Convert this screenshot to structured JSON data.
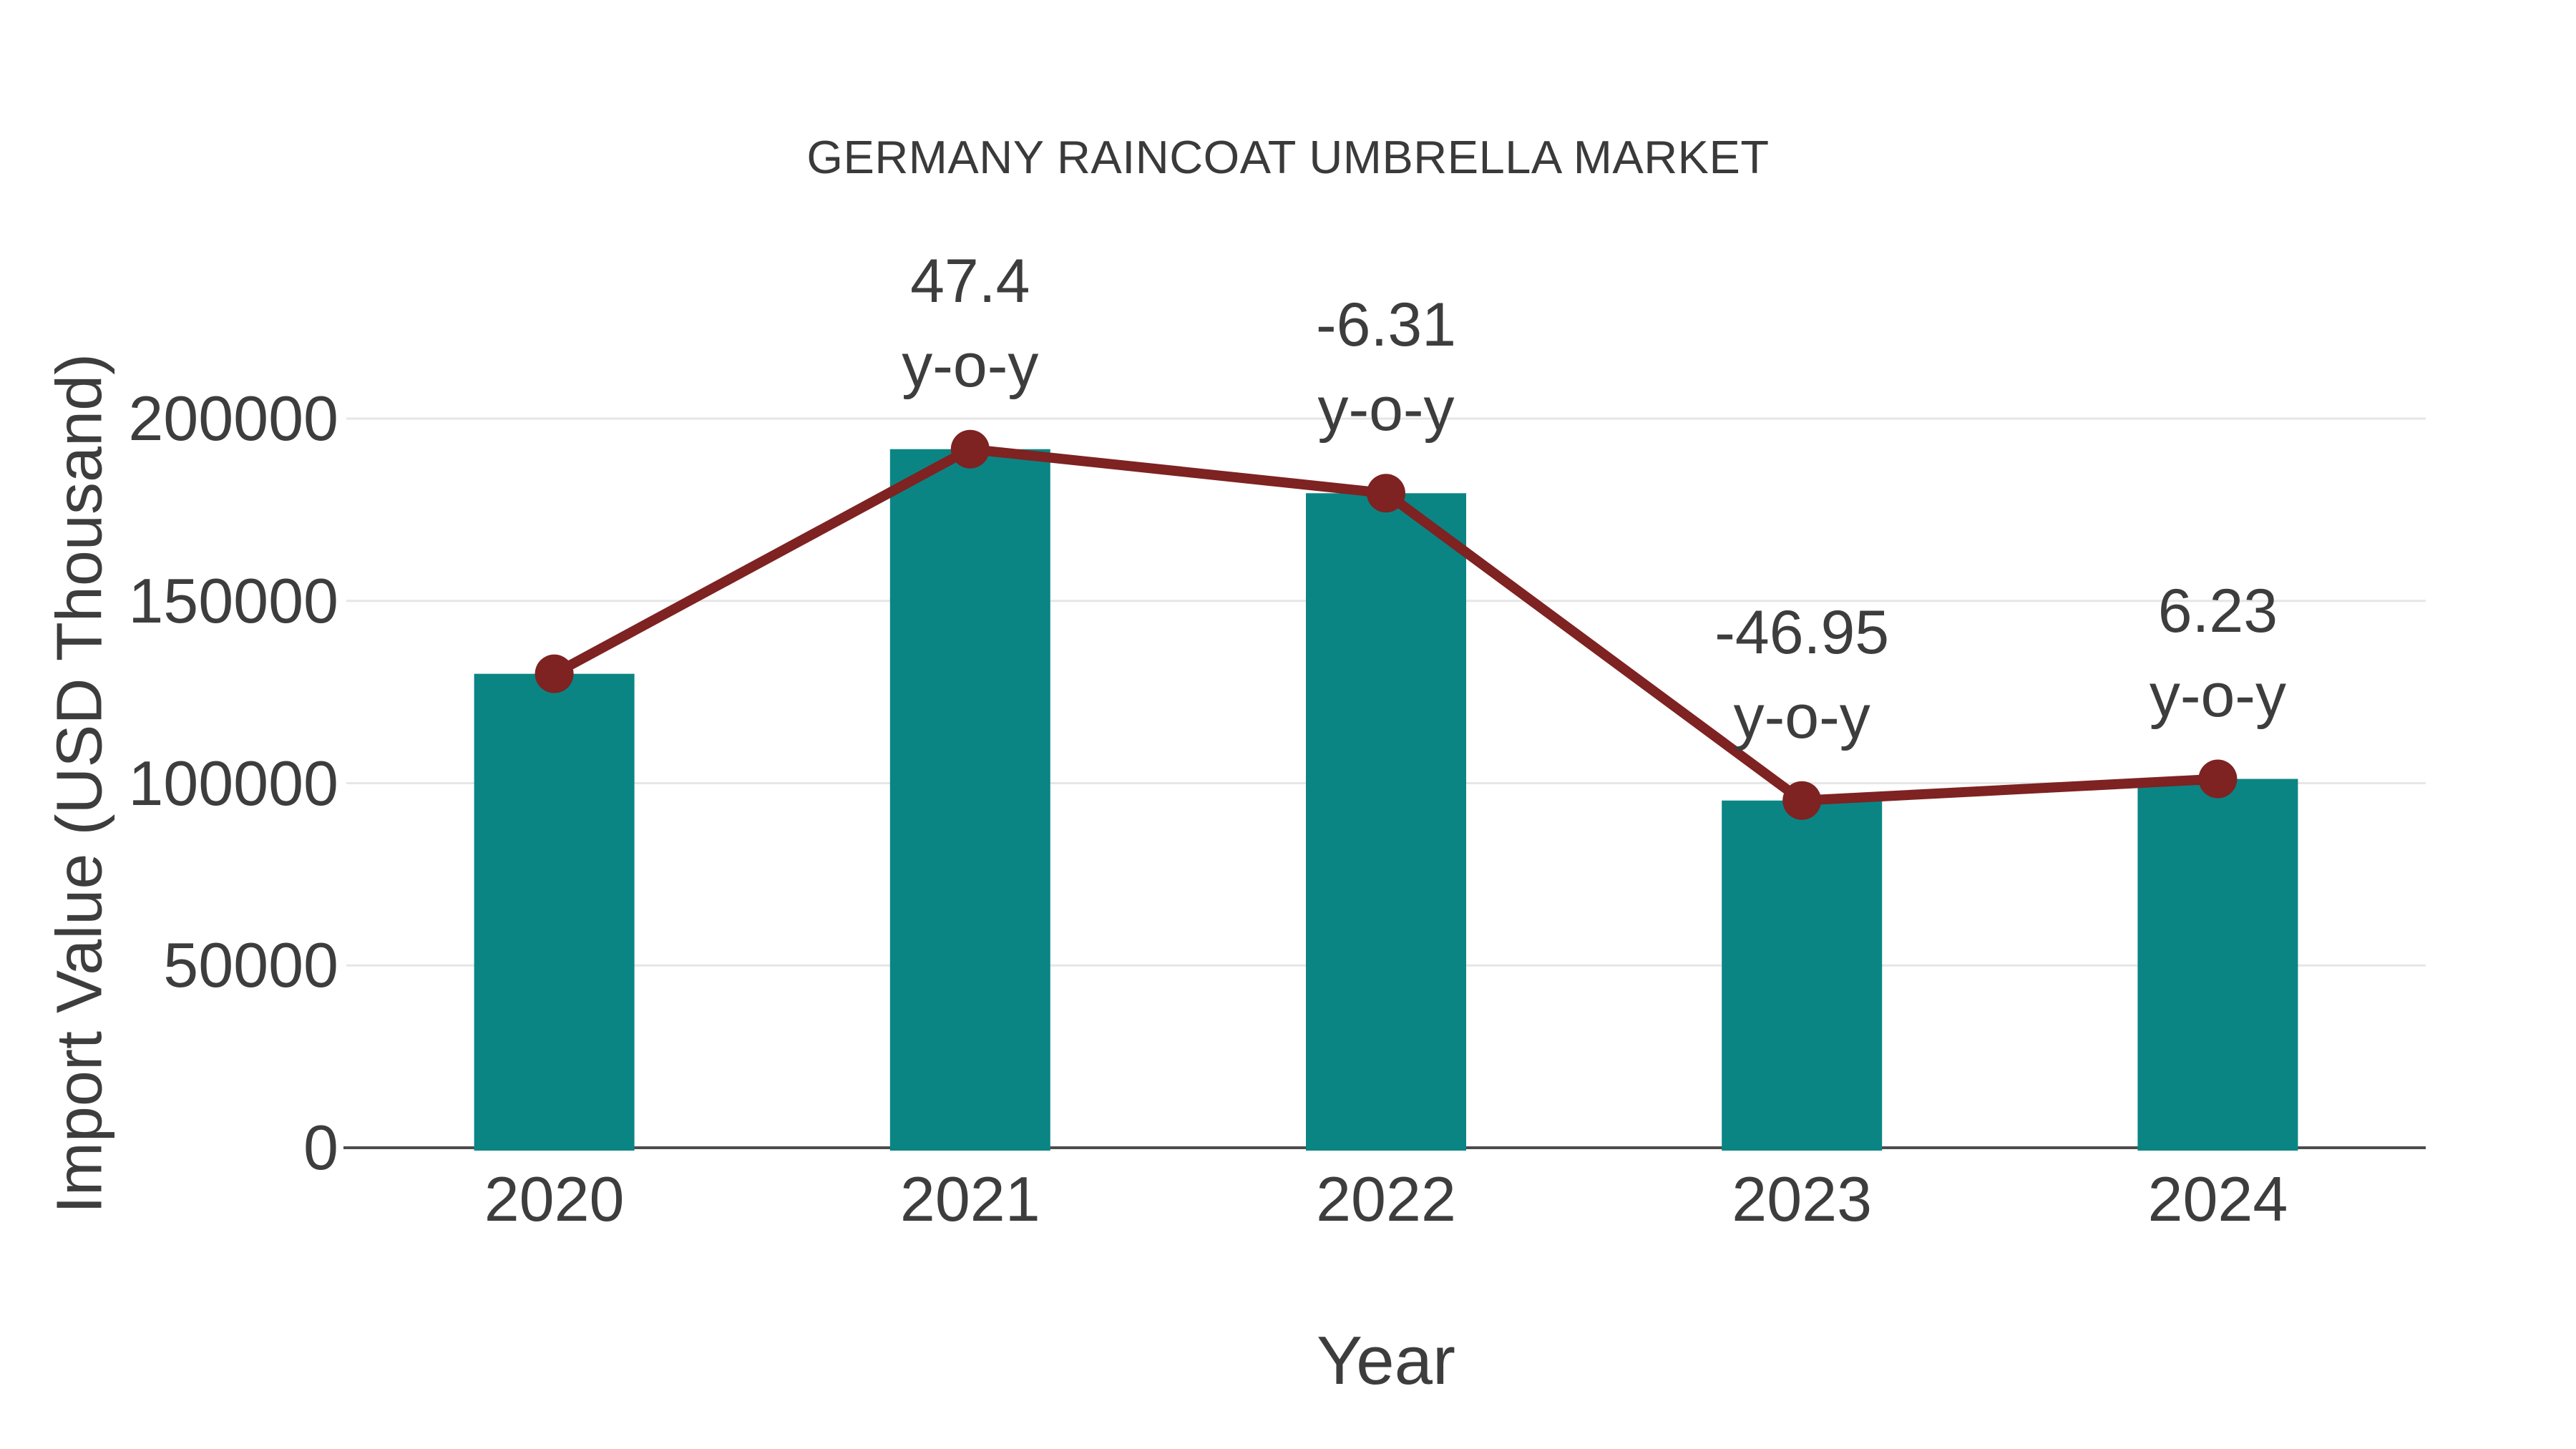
{
  "chart_data": {
    "type": "bar",
    "title": "GERMANY RAINCOAT UMBRELLA MARKET",
    "xlabel": "Year",
    "ylabel": "Import Value (USD Thousand)",
    "categories": [
      "2020",
      "2021",
      "2022",
      "2023",
      "2024"
    ],
    "series": [
      {
        "name": "Import Value",
        "type": "bar",
        "values": [
          130000,
          191620,
          179530,
          95240,
          101170
        ]
      },
      {
        "name": "Import Value Trend",
        "type": "line",
        "values": [
          130000,
          191620,
          179530,
          95240,
          101170
        ]
      }
    ],
    "annotations": [
      {
        "category": "2021",
        "value": "47.4",
        "suffix": "y-o-y"
      },
      {
        "category": "2022",
        "value": "-6.31",
        "suffix": "y-o-y"
      },
      {
        "category": "2023",
        "value": "-46.95",
        "suffix": "y-o-y"
      },
      {
        "category": "2024",
        "value": "6.23",
        "suffix": "y-o-y"
      }
    ],
    "yticks": [
      0,
      50000,
      100000,
      150000,
      200000
    ],
    "ylim": [
      0,
      225000
    ],
    "grid": true,
    "legend": false,
    "colors": {
      "bar": "#0b8584",
      "line": "#7e2222",
      "marker": "#7e2222",
      "text": "#3d3d3d",
      "grid": "#e6e6e6",
      "axis": "#4c4c4c",
      "background": "#ffffff"
    }
  }
}
